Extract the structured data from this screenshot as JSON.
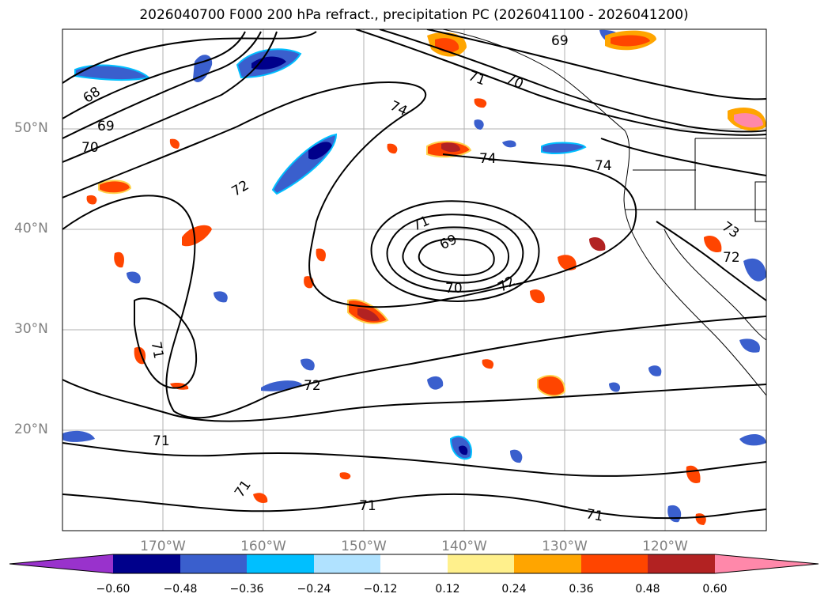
{
  "title": "2026040700 F000 200 hPa refract., precipitation PC (2026041100 - 2026041200)",
  "map": {
    "projection": "cylindrical",
    "lon_range": [
      -180,
      -110
    ],
    "lat_range": [
      10,
      60
    ],
    "lat_labels": [
      "50°N",
      "40°N",
      "30°N",
      "20°N"
    ],
    "lon_labels": [
      "170°W",
      "160°W",
      "150°W",
      "140°W",
      "130°W",
      "120°W"
    ],
    "grid": true,
    "contour_labels": [
      "69",
      "68",
      "69",
      "70",
      "71",
      "70",
      "74",
      "72",
      "74",
      "74",
      "71",
      "69",
      "70",
      "72",
      "73",
      "72",
      "71",
      "72",
      "71",
      "71",
      "71"
    ],
    "contour_color": "#000000"
  },
  "colorbar": {
    "ticks": [
      "−0.60",
      "−0.48",
      "−0.36",
      "−0.24",
      "−0.12",
      "0.12",
      "0.24",
      "0.36",
      "0.48",
      "0.60"
    ],
    "colors": [
      "#9932cc",
      "#00008b",
      "#3a5fcd",
      "#00bfff",
      "#b0e2ff",
      "#ffffff",
      "#fff08c",
      "#ffa500",
      "#ff4500",
      "#b22222",
      "#ff88aa"
    ],
    "extend": "both"
  }
}
